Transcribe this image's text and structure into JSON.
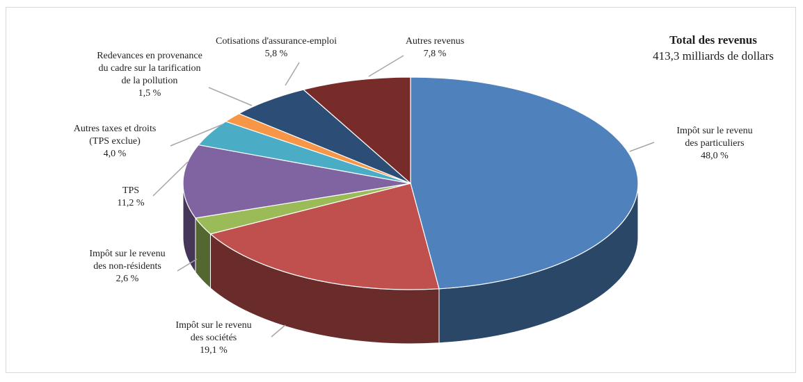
{
  "chart_data": {
    "type": "pie",
    "title": "Total des revenus",
    "subtitle": "413,3 milliards de dollars",
    "three_d": true,
    "slices": [
      {
        "label_lines": [
          "Impôt sur le revenu",
          "des particuliers"
        ],
        "value": 48.0,
        "value_label": "48,0 %",
        "color": "#4f81bd"
      },
      {
        "label_lines": [
          "Impôt sur le revenu",
          "des sociétés"
        ],
        "value": 19.1,
        "value_label": "19,1 %",
        "color": "#c0504d"
      },
      {
        "label_lines": [
          "Impôt sur le revenu",
          "des non-résidents"
        ],
        "value": 2.6,
        "value_label": "2,6 %",
        "color": "#9bbb59"
      },
      {
        "label_lines": [
          "TPS"
        ],
        "value": 11.2,
        "value_label": "11,2 %",
        "color": "#8064a2"
      },
      {
        "label_lines": [
          "Autres taxes et droits",
          "(TPS exclue)"
        ],
        "value": 4.0,
        "value_label": "4,0 %",
        "color": "#4bacc6"
      },
      {
        "label_lines": [
          "Redevances en provenance",
          "du cadre sur la tarification",
          "de la pollution"
        ],
        "value": 1.5,
        "value_label": "1,5 %",
        "color": "#f79646"
      },
      {
        "label_lines": [
          "Cotisations d'assurance-emploi"
        ],
        "value": 5.8,
        "value_label": "5,8 %",
        "color": "#2c4d75"
      },
      {
        "label_lines": [
          "Autres revenus"
        ],
        "value": 7.8,
        "value_label": "7,8 %",
        "color": "#772c2a"
      }
    ]
  }
}
